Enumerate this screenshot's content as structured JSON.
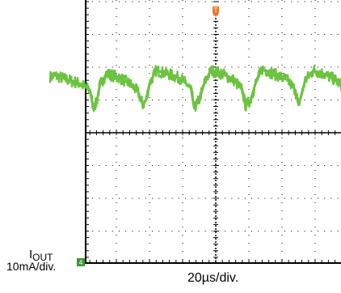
{
  "chart_data": {
    "type": "line",
    "title": "",
    "channel_label_main": "I",
    "channel_label_sub": "OUT",
    "channel_scale": "10mA/div.",
    "time_scale": "20µs/div.",
    "channel_marker_text": "4",
    "trigger_marker_text": "T",
    "xlim": [
      0,
      200
    ],
    "ylim": [
      0,
      80
    ],
    "x_unit": "µs",
    "y_unit": "mA",
    "grid": true,
    "series": [
      {
        "x": [
          0,
          3,
          10,
          18,
          24,
          26,
          28,
          30,
          34,
          41,
          48,
          53,
          56,
          58,
          60,
          64,
          71,
          79,
          85,
          87,
          90,
          93,
          97,
          104,
          111,
          116,
          118,
          121,
          124,
          128,
          135,
          143,
          148,
          150,
          152,
          154,
          159,
          165,
          172,
          178,
          181,
          182,
          183,
          185,
          188,
          193,
          198,
          200
        ],
        "y": [
          57,
          57.5,
          56.2,
          55,
          53,
          48,
          49,
          54.5,
          58,
          57,
          55,
          52.5,
          48.5,
          50,
          55,
          59,
          58,
          56.5,
          53.5,
          47.5,
          50,
          55,
          59,
          58,
          56,
          53,
          48.2,
          50,
          55,
          59.5,
          58,
          56.2,
          53,
          48.5,
          52,
          56,
          59,
          58,
          56.2,
          53.5,
          51,
          48,
          50,
          54,
          58,
          57,
          56.5,
          57
        ]
      }
    ],
    "colors": {
      "trace": "#6cc340",
      "channel_marker": "#3a9a35",
      "trigger_marker": "#f07828",
      "grid": "#000000",
      "frame": "#000000"
    }
  }
}
